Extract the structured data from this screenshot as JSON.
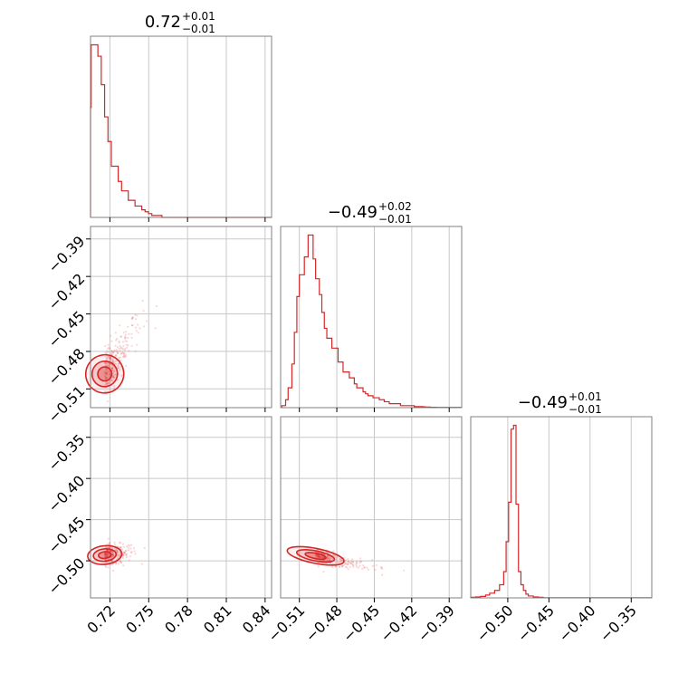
{
  "figure": {
    "titles": [
      {
        "value": "0.72",
        "sup": "+0.01",
        "sub": "−0.01"
      },
      {
        "value": "−0.49",
        "sup": "+0.02",
        "sub": "−0.01"
      },
      {
        "value": "−0.49",
        "sup": "+0.01",
        "sub": "−0.01"
      }
    ]
  },
  "chart_data": {
    "type": "corner",
    "color": "#d62728",
    "grid": true,
    "params": [
      {
        "range": [
          0.705,
          0.845
        ],
        "ticks": [
          0.72,
          0.75,
          0.78,
          0.81,
          0.84
        ],
        "tick_labels": [
          "0.72",
          "0.75",
          "0.78",
          "0.81",
          "0.84"
        ]
      },
      {
        "range": [
          -0.525,
          -0.38
        ],
        "ticks": [
          -0.51,
          -0.48,
          -0.45,
          -0.42,
          -0.39
        ],
        "tick_labels": [
          "−0.51",
          "−0.48",
          "−0.45",
          "−0.42",
          "−0.39"
        ]
      },
      {
        "range": [
          -0.545,
          -0.325
        ],
        "ticks": [
          -0.5,
          -0.45,
          -0.4,
          -0.35
        ],
        "tick_labels": [
          "−0.50",
          "−0.45",
          "−0.40",
          "−0.35"
        ]
      }
    ],
    "histograms": [
      {
        "edges": [
          0.7033,
          0.7055,
          0.7081,
          0.7107,
          0.7133,
          0.7159,
          0.7185,
          0.7211,
          0.7237,
          0.7264,
          0.729,
          0.7316,
          0.7342,
          0.7368,
          0.7394,
          0.742,
          0.7446,
          0.7472,
          0.7498,
          0.7524,
          0.755,
          0.7576,
          0.7602,
          0.845
        ],
        "counts": [
          0.58,
          0.91,
          0.91,
          0.85,
          0.7,
          0.53,
          0.4,
          0.27,
          0.27,
          0.19,
          0.14,
          0.14,
          0.09,
          0.09,
          0.06,
          0.06,
          0.04,
          0.03,
          0.02,
          0.01,
          0.01,
          0.01,
          0.0
        ]
      },
      {
        "edges": [
          -0.524,
          -0.521,
          -0.519,
          -0.516,
          -0.514,
          -0.512,
          -0.51,
          -0.508,
          -0.506,
          -0.503,
          -0.501,
          -0.499,
          -0.497,
          -0.494,
          -0.492,
          -0.49,
          -0.488,
          -0.486,
          -0.484,
          -0.481,
          -0.479,
          -0.477,
          -0.475,
          -0.472,
          -0.47,
          -0.468,
          -0.466,
          -0.464,
          -0.462,
          -0.459,
          -0.457,
          -0.455,
          -0.453,
          -0.451,
          -0.448,
          -0.446,
          -0.444,
          -0.442,
          -0.44,
          -0.438,
          -0.435,
          -0.433,
          -0.431,
          -0.429,
          -0.427,
          -0.424,
          -0.422,
          -0.42,
          -0.418,
          -0.416,
          -0.414,
          -0.411,
          -0.409,
          -0.407,
          -0.405,
          -0.403,
          -0.4,
          -0.38
        ],
        "counts": [
          0.01,
          0.04,
          0.1,
          0.22,
          0.38,
          0.56,
          0.67,
          0.67,
          0.76,
          0.87,
          0.87,
          0.75,
          0.65,
          0.57,
          0.48,
          0.4,
          0.35,
          0.35,
          0.3,
          0.3,
          0.23,
          0.23,
          0.18,
          0.18,
          0.15,
          0.15,
          0.12,
          0.1,
          0.1,
          0.08,
          0.07,
          0.06,
          0.06,
          0.05,
          0.05,
          0.04,
          0.04,
          0.03,
          0.03,
          0.02,
          0.02,
          0.02,
          0.02,
          0.01,
          0.01,
          0.01,
          0.01,
          0.01,
          0.005,
          0.005,
          0.005,
          0.004,
          0.003,
          0.003,
          0.002,
          0.002,
          0.001
        ]
      },
      {
        "edges": [
          -0.545,
          -0.539,
          -0.533,
          -0.527,
          -0.522,
          -0.516,
          -0.51,
          -0.505,
          -0.502,
          -0.499,
          -0.496,
          -0.493,
          -0.49,
          -0.487,
          -0.484,
          -0.481,
          -0.478,
          -0.475,
          -0.469,
          -0.463,
          -0.457,
          -0.325
        ],
        "counts": [
          0.003,
          0.005,
          0.008,
          0.015,
          0.025,
          0.04,
          0.07,
          0.14,
          0.3,
          0.51,
          0.9,
          0.92,
          0.5,
          0.14,
          0.07,
          0.04,
          0.02,
          0.01,
          0.005,
          0.003,
          0.001
        ]
      }
    ],
    "scatter_pairs": [
      {
        "x_param": 0,
        "y_param": 1,
        "center": [
          0.716,
          -0.498
        ],
        "spread": [
          0.009,
          0.016
        ],
        "corr": 0.8,
        "contours": [
          {
            "scale": 0.55,
            "fill_opacity": 0.35
          },
          {
            "scale": 1.0,
            "fill_opacity": 0.18
          },
          {
            "scale": 1.5,
            "fill_opacity": 0.08
          }
        ]
      },
      {
        "x_param": 0,
        "y_param": 2,
        "center": [
          0.716,
          -0.493
        ],
        "spread": [
          0.008,
          0.006
        ],
        "corr": 0.2,
        "contours": [
          {
            "scale": 0.55,
            "fill_opacity": 0.35
          },
          {
            "scale": 1.0,
            "fill_opacity": 0.18
          },
          {
            "scale": 1.5,
            "fill_opacity": 0.08
          }
        ]
      },
      {
        "x_param": 1,
        "y_param": 2,
        "center": [
          -0.497,
          -0.494
        ],
        "spread": [
          0.014,
          0.006
        ],
        "corr": -0.7,
        "contours": [
          {
            "scale": 0.55,
            "fill_opacity": 0.35
          },
          {
            "scale": 1.0,
            "fill_opacity": 0.18
          },
          {
            "scale": 1.5,
            "fill_opacity": 0.08
          }
        ]
      }
    ]
  }
}
